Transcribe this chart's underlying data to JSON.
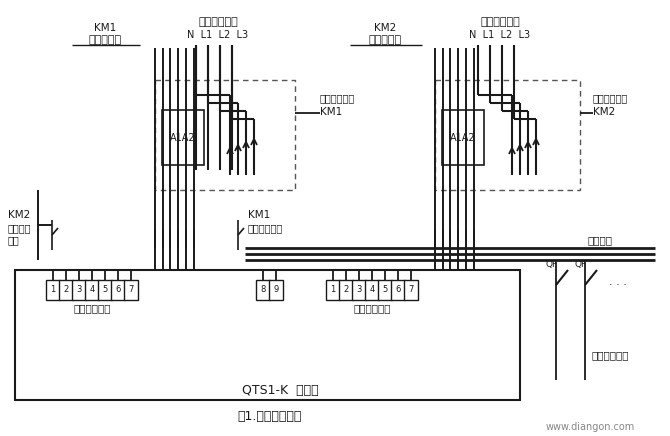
{
  "bg_color": "#ffffff",
  "lc": "#1a1a1a",
  "tc": "#1a1a1a",
  "title": "图1.控制器接线图",
  "watermark": "www.diangon.com",
  "controller_label": "QTS1-K  控制器",
  "km1_coil_label1": "KM1",
  "km1_coil_label2": "接触器线圈",
  "km2_coil_label1": "KM2",
  "km2_coil_label2": "接触器线圈",
  "backup_input_label1": "备用电源输入",
  "backup_input_label2": "N  L1  L2  L3",
  "normal_input_label1": "常用电源输入",
  "normal_input_label2": "N  L1  L2  L3",
  "no_left_label": "常开辅助触点",
  "km1_label": "KM1",
  "no_right_label": "常开辅助触点",
  "km2_label": "KM2",
  "nc_left_label1": "KM2",
  "nc_left_label2": "常闭辅助触点",
  "nc_mid_label1": "KM1",
  "nc_mid_label2": "常闭辅助触点",
  "bus_label": "配电母线",
  "backup_port_label": "备用电源插口",
  "normal_port_label": "常用电源插口",
  "fire_label": "消防用电负荷"
}
